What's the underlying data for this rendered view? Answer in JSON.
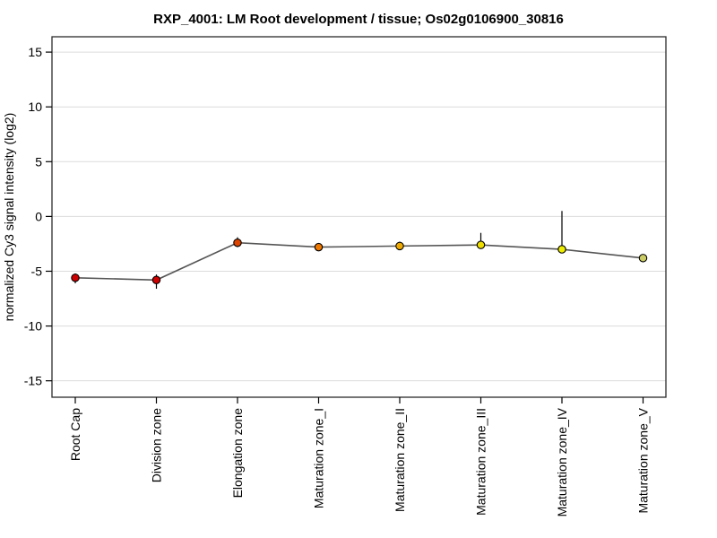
{
  "page": {
    "background": "#ffffff"
  },
  "chart_data": {
    "type": "line",
    "title": "RXP_4001: LM Root development / tissue; Os02g0106900_30816",
    "ylabel": "normalized Cy3 signal intensity (log2)",
    "xlabel": "",
    "categories": [
      "Root Cap",
      "Division zone",
      "Elongation zone",
      "Maturation zone_I",
      "Maturation zone_II",
      "Maturation zone_III",
      "Maturation zone_IV",
      "Maturation zone_V"
    ],
    "values": [
      -5.6,
      -5.8,
      -2.4,
      -2.8,
      -2.7,
      -2.6,
      -3.0,
      -3.8
    ],
    "error_low": [
      -6.1,
      -6.6,
      -2.8,
      -3.1,
      -3.0,
      -2.9,
      -3.3,
      -4.0
    ],
    "error_high": [
      -5.2,
      -5.3,
      -1.9,
      -2.6,
      -2.3,
      -1.5,
      0.5,
      -3.6
    ],
    "point_colors": [
      "#cc0000",
      "#cc0000",
      "#dd4400",
      "#ee7700",
      "#eeaa00",
      "#eedd00",
      "#eeee00",
      "#cccc66"
    ],
    "yticks": [
      15,
      10,
      5,
      0,
      -5,
      -10,
      -15
    ],
    "ylim": [
      -16.5,
      16.4
    ],
    "grid": true,
    "legend": "none",
    "line_color": "#555555",
    "grid_color": "#dcdcdc",
    "border_color": "#2b2b2b",
    "errorbar_color": "#000000",
    "point_outline": "#000000"
  }
}
